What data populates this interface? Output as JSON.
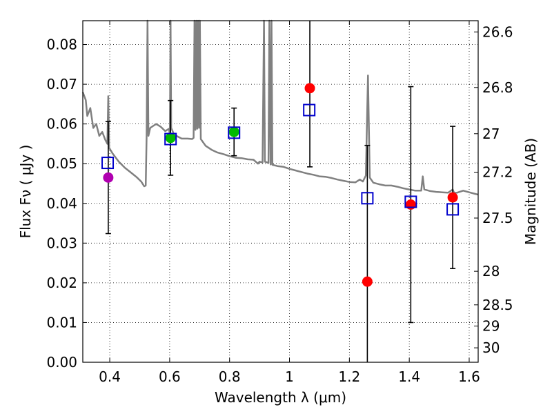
{
  "chart_data": {
    "type": "scatter",
    "title": "",
    "xlabel": "Wavelength  λ (μm)",
    "ylabel": "Flux  Fν  ( μJy )",
    "y2label": "Magnitude (AB)",
    "xlim": [
      0.31,
      1.63
    ],
    "ylim": [
      0.0,
      0.086
    ],
    "grid": true,
    "x_ticks": [
      0.4,
      0.6,
      0.8,
      1.0,
      1.2,
      1.4,
      1.6
    ],
    "x_tick_labels": [
      "0.4",
      "0.6",
      "0.8",
      "1",
      "1.2",
      "1.4",
      "1.6"
    ],
    "y_ticks": [
      0.0,
      0.01,
      0.02,
      0.03,
      0.04,
      0.05,
      0.06,
      0.07,
      0.08
    ],
    "y_tick_labels": [
      "0.00",
      "0.01",
      "0.02",
      "0.03",
      "0.04",
      "0.05",
      "0.06",
      "0.07",
      "0.08"
    ],
    "magnitude_ticks": [
      {
        "mag": 26.6,
        "label": "26.6"
      },
      {
        "mag": 26.8,
        "label": "26.8"
      },
      {
        "mag": 27.0,
        "label": "27"
      },
      {
        "mag": 27.2,
        "label": "27.2"
      },
      {
        "mag": 27.5,
        "label": "27.5"
      },
      {
        "mag": 28.0,
        "label": "28"
      },
      {
        "mag": 28.5,
        "label": "28.5"
      },
      {
        "mag": 29.0,
        "label": "29"
      },
      {
        "mag": 30.0,
        "label": "30"
      }
    ],
    "colors": {
      "template": "#808080",
      "model": "#0000cc",
      "errorbar": "#000000",
      "uv": "#b000b0",
      "optical": "#00bb00",
      "infrared": "#ff0000"
    },
    "observed": [
      {
        "x": 0.395,
        "y": 0.0465,
        "yerr": 0.0141,
        "color": "uv"
      },
      {
        "x": 0.603,
        "y": 0.0565,
        "yerr": 0.0094,
        "color": "optical"
      },
      {
        "x": 0.815,
        "y": 0.058,
        "yerr": 0.006,
        "color": "optical"
      },
      {
        "x": 1.068,
        "y": 0.069,
        "yerr": 0.0198,
        "color": "infrared"
      },
      {
        "x": 1.26,
        "y": 0.0203,
        "yerr": 0.0343,
        "color": "infrared"
      },
      {
        "x": 1.405,
        "y": 0.0397,
        "yerr": 0.0297,
        "color": "infrared"
      },
      {
        "x": 1.545,
        "y": 0.0415,
        "yerr": 0.0179,
        "color": "infrared"
      }
    ],
    "model_points": [
      {
        "x": 0.393,
        "y": 0.0502
      },
      {
        "x": 0.603,
        "y": 0.0562
      },
      {
        "x": 0.815,
        "y": 0.0578
      },
      {
        "x": 1.066,
        "y": 0.0635
      },
      {
        "x": 1.26,
        "y": 0.0413
      },
      {
        "x": 1.405,
        "y": 0.0404
      },
      {
        "x": 1.545,
        "y": 0.0385
      }
    ],
    "template_sed": [
      [
        0.31,
        0.068
      ],
      [
        0.32,
        0.066
      ],
      [
        0.325,
        0.062
      ],
      [
        0.335,
        0.064
      ],
      [
        0.345,
        0.059
      ],
      [
        0.355,
        0.06
      ],
      [
        0.365,
        0.057
      ],
      [
        0.375,
        0.058
      ],
      [
        0.385,
        0.056
      ],
      [
        0.392,
        0.055
      ],
      [
        0.395,
        0.067
      ],
      [
        0.398,
        0.054
      ],
      [
        0.41,
        0.0525
      ],
      [
        0.43,
        0.0505
      ],
      [
        0.45,
        0.049
      ],
      [
        0.47,
        0.0478
      ],
      [
        0.49,
        0.0466
      ],
      [
        0.505,
        0.0455
      ],
      [
        0.515,
        0.0443
      ],
      [
        0.52,
        0.0445
      ],
      [
        0.523,
        0.057
      ],
      [
        0.526,
        0.086
      ],
      [
        0.529,
        0.057
      ],
      [
        0.535,
        0.059
      ],
      [
        0.545,
        0.0595
      ],
      [
        0.555,
        0.06
      ],
      [
        0.57,
        0.0593
      ],
      [
        0.585,
        0.0582
      ],
      [
        0.598,
        0.0588
      ],
      [
        0.6,
        0.0575
      ],
      [
        0.601,
        0.059
      ],
      [
        0.603,
        0.086
      ],
      [
        0.605,
        0.059
      ],
      [
        0.615,
        0.0573
      ],
      [
        0.64,
        0.0563
      ],
      [
        0.66,
        0.0563
      ],
      [
        0.675,
        0.0562
      ],
      [
        0.68,
        0.0565
      ],
      [
        0.683,
        0.086
      ],
      [
        0.686,
        0.0585
      ],
      [
        0.689,
        0.086
      ],
      [
        0.692,
        0.0588
      ],
      [
        0.695,
        0.086
      ],
      [
        0.698,
        0.059
      ],
      [
        0.701,
        0.086
      ],
      [
        0.704,
        0.0562
      ],
      [
        0.72,
        0.0545
      ],
      [
        0.74,
        0.0535
      ],
      [
        0.76,
        0.0528
      ],
      [
        0.78,
        0.0524
      ],
      [
        0.8,
        0.0519
      ],
      [
        0.82,
        0.0515
      ],
      [
        0.84,
        0.0514
      ],
      [
        0.86,
        0.0511
      ],
      [
        0.88,
        0.051
      ],
      [
        0.895,
        0.05
      ],
      [
        0.9,
        0.0505
      ],
      [
        0.91,
        0.0503
      ],
      [
        0.915,
        0.086
      ],
      [
        0.918,
        0.0505
      ],
      [
        0.93,
        0.0502
      ],
      [
        0.933,
        0.086
      ],
      [
        0.937,
        0.0498
      ],
      [
        0.94,
        0.086
      ],
      [
        0.943,
        0.0497
      ],
      [
        0.96,
        0.0494
      ],
      [
        0.98,
        0.0492
      ],
      [
        1.0,
        0.0487
      ],
      [
        1.02,
        0.0483
      ],
      [
        1.04,
        0.0479
      ],
      [
        1.06,
        0.0475
      ],
      [
        1.08,
        0.0472
      ],
      [
        1.1,
        0.0468
      ],
      [
        1.12,
        0.0467
      ],
      [
        1.14,
        0.0464
      ],
      [
        1.16,
        0.046
      ],
      [
        1.18,
        0.0457
      ],
      [
        1.2,
        0.0454
      ],
      [
        1.22,
        0.0453
      ],
      [
        1.235,
        0.046
      ],
      [
        1.245,
        0.0455
      ],
      [
        1.255,
        0.047
      ],
      [
        1.262,
        0.0722
      ],
      [
        1.268,
        0.0465
      ],
      [
        1.28,
        0.0452
      ],
      [
        1.3,
        0.0448
      ],
      [
        1.32,
        0.0445
      ],
      [
        1.34,
        0.0445
      ],
      [
        1.36,
        0.0442
      ],
      [
        1.38,
        0.0438
      ],
      [
        1.4,
        0.0435
      ],
      [
        1.42,
        0.0432
      ],
      [
        1.43,
        0.0432
      ],
      [
        1.44,
        0.0432
      ],
      [
        1.445,
        0.0468
      ],
      [
        1.45,
        0.0435
      ],
      [
        1.47,
        0.0431
      ],
      [
        1.49,
        0.0429
      ],
      [
        1.51,
        0.0428
      ],
      [
        1.53,
        0.0427
      ],
      [
        1.545,
        0.0435
      ],
      [
        1.55,
        0.0426
      ],
      [
        1.56,
        0.0427
      ],
      [
        1.58,
        0.0432
      ],
      [
        1.6,
        0.0428
      ],
      [
        1.62,
        0.0424
      ],
      [
        1.63,
        0.0422
      ]
    ]
  }
}
